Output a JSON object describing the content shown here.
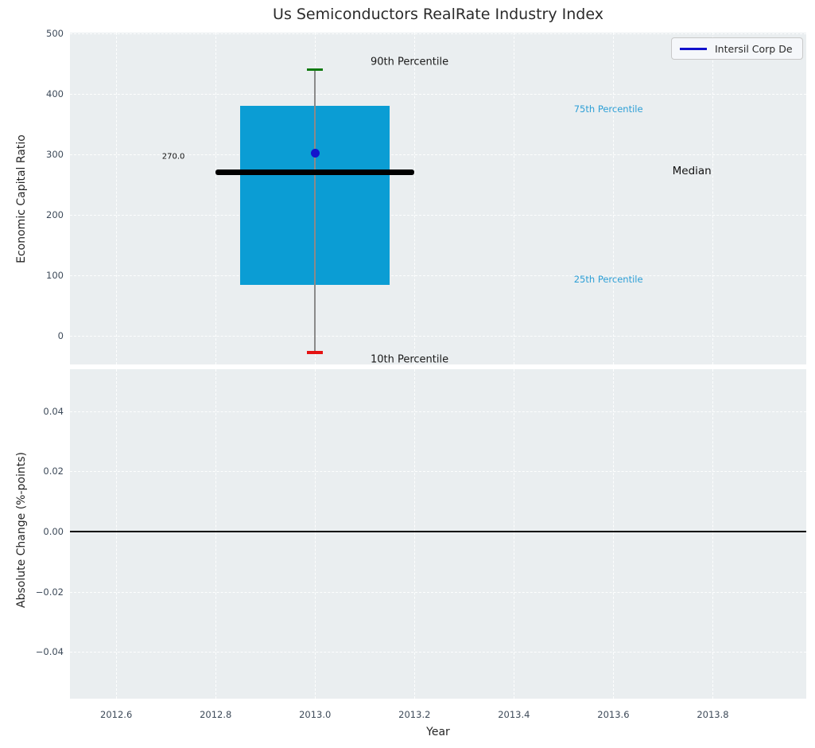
{
  "figure": {
    "title": "Us Semiconductors RealRate Industry Index"
  },
  "legend": {
    "label": "Intersil Corp De",
    "line_color": "#1111cc"
  },
  "colors": {
    "plot_bg": "#eaeef0",
    "grid": "rgba(255,255,255,0.9)",
    "box": "#0b9dd4",
    "whisker": "#8a8a8a",
    "cap_p90": "#117a11",
    "cap_p10": "#e51212",
    "median": "#000000",
    "point": "#1414cc",
    "zero_line": "#000000",
    "tick_text": "#3d4a59",
    "percentile_blue": "#2d9fd6"
  },
  "x_axis": {
    "label": "Year",
    "xlim": [
      2012.507,
      2013.988
    ],
    "xticks": [
      {
        "v": 2012.6,
        "label": "2012.6"
      },
      {
        "v": 2012.8,
        "label": "2012.8"
      },
      {
        "v": 2013.0,
        "label": "2013.0"
      },
      {
        "v": 2013.2,
        "label": "2013.2"
      },
      {
        "v": 2013.4,
        "label": "2013.4"
      },
      {
        "v": 2013.6,
        "label": "2013.6"
      },
      {
        "v": 2013.8,
        "label": "2013.8"
      }
    ]
  },
  "chart_data": [
    {
      "type": "boxplot",
      "subplot": "top",
      "ylabel": "Economic Capital Ratio",
      "ylim": [
        -48,
        501
      ],
      "yticks": [
        {
          "v": 0,
          "label": "0"
        },
        {
          "v": 100,
          "label": "100"
        },
        {
          "v": 200,
          "label": "200"
        },
        {
          "v": 300,
          "label": "300"
        },
        {
          "v": 400,
          "label": "400"
        },
        {
          "v": 500,
          "label": "500"
        }
      ],
      "x_center": 2013.0,
      "box_halfwidth": 0.15,
      "median_halfwidth": 0.2,
      "cap_halfwidth": 0.016,
      "stats": {
        "p10": -28,
        "p25": 84,
        "median": 270,
        "p75": 380,
        "p90": 440
      },
      "company_point": {
        "name": "Intersil Corp De",
        "x": 2013.0,
        "y": 302
      },
      "annotations": [
        {
          "name": "annotation-90th-percentile",
          "text": "90th Percentile",
          "x": 2013.19,
          "y": 452,
          "color": "#1a1a1a",
          "size": 13
        },
        {
          "name": "annotation-75th-percentile",
          "text": "75th Percentile",
          "x": 2013.59,
          "y": 375,
          "color": "#2d9fd6",
          "size": 11.5
        },
        {
          "name": "annotation-median",
          "text": "Median",
          "x": 2013.758,
          "y": 272,
          "color": "#111111",
          "size": 13.5
        },
        {
          "name": "annotation-25th-percentile",
          "text": "25th Percentile",
          "x": 2013.59,
          "y": 93,
          "color": "#2d9fd6",
          "size": 11.5
        },
        {
          "name": "annotation-10th-percentile",
          "text": "10th Percentile",
          "x": 2013.19,
          "y": -40,
          "color": "#1a1a1a",
          "size": 13
        },
        {
          "name": "annotation-median-value",
          "text": "270.0",
          "x": 2012.715,
          "y": 296,
          "color": "#111111",
          "size": 10
        }
      ]
    },
    {
      "type": "line",
      "subplot": "bottom",
      "ylabel": "Absolute Change (%-points)",
      "xlabel": "Year",
      "ylim": [
        -0.0556,
        0.054
      ],
      "yticks": [
        {
          "v": 0.04,
          "label": "0.04"
        },
        {
          "v": 0.02,
          "label": "0.02"
        },
        {
          "v": 0.0,
          "label": "0.00"
        },
        {
          "v": -0.02,
          "label": "−0.02"
        },
        {
          "v": -0.04,
          "label": "−0.04"
        }
      ],
      "zero_line_y": 0.0
    }
  ]
}
